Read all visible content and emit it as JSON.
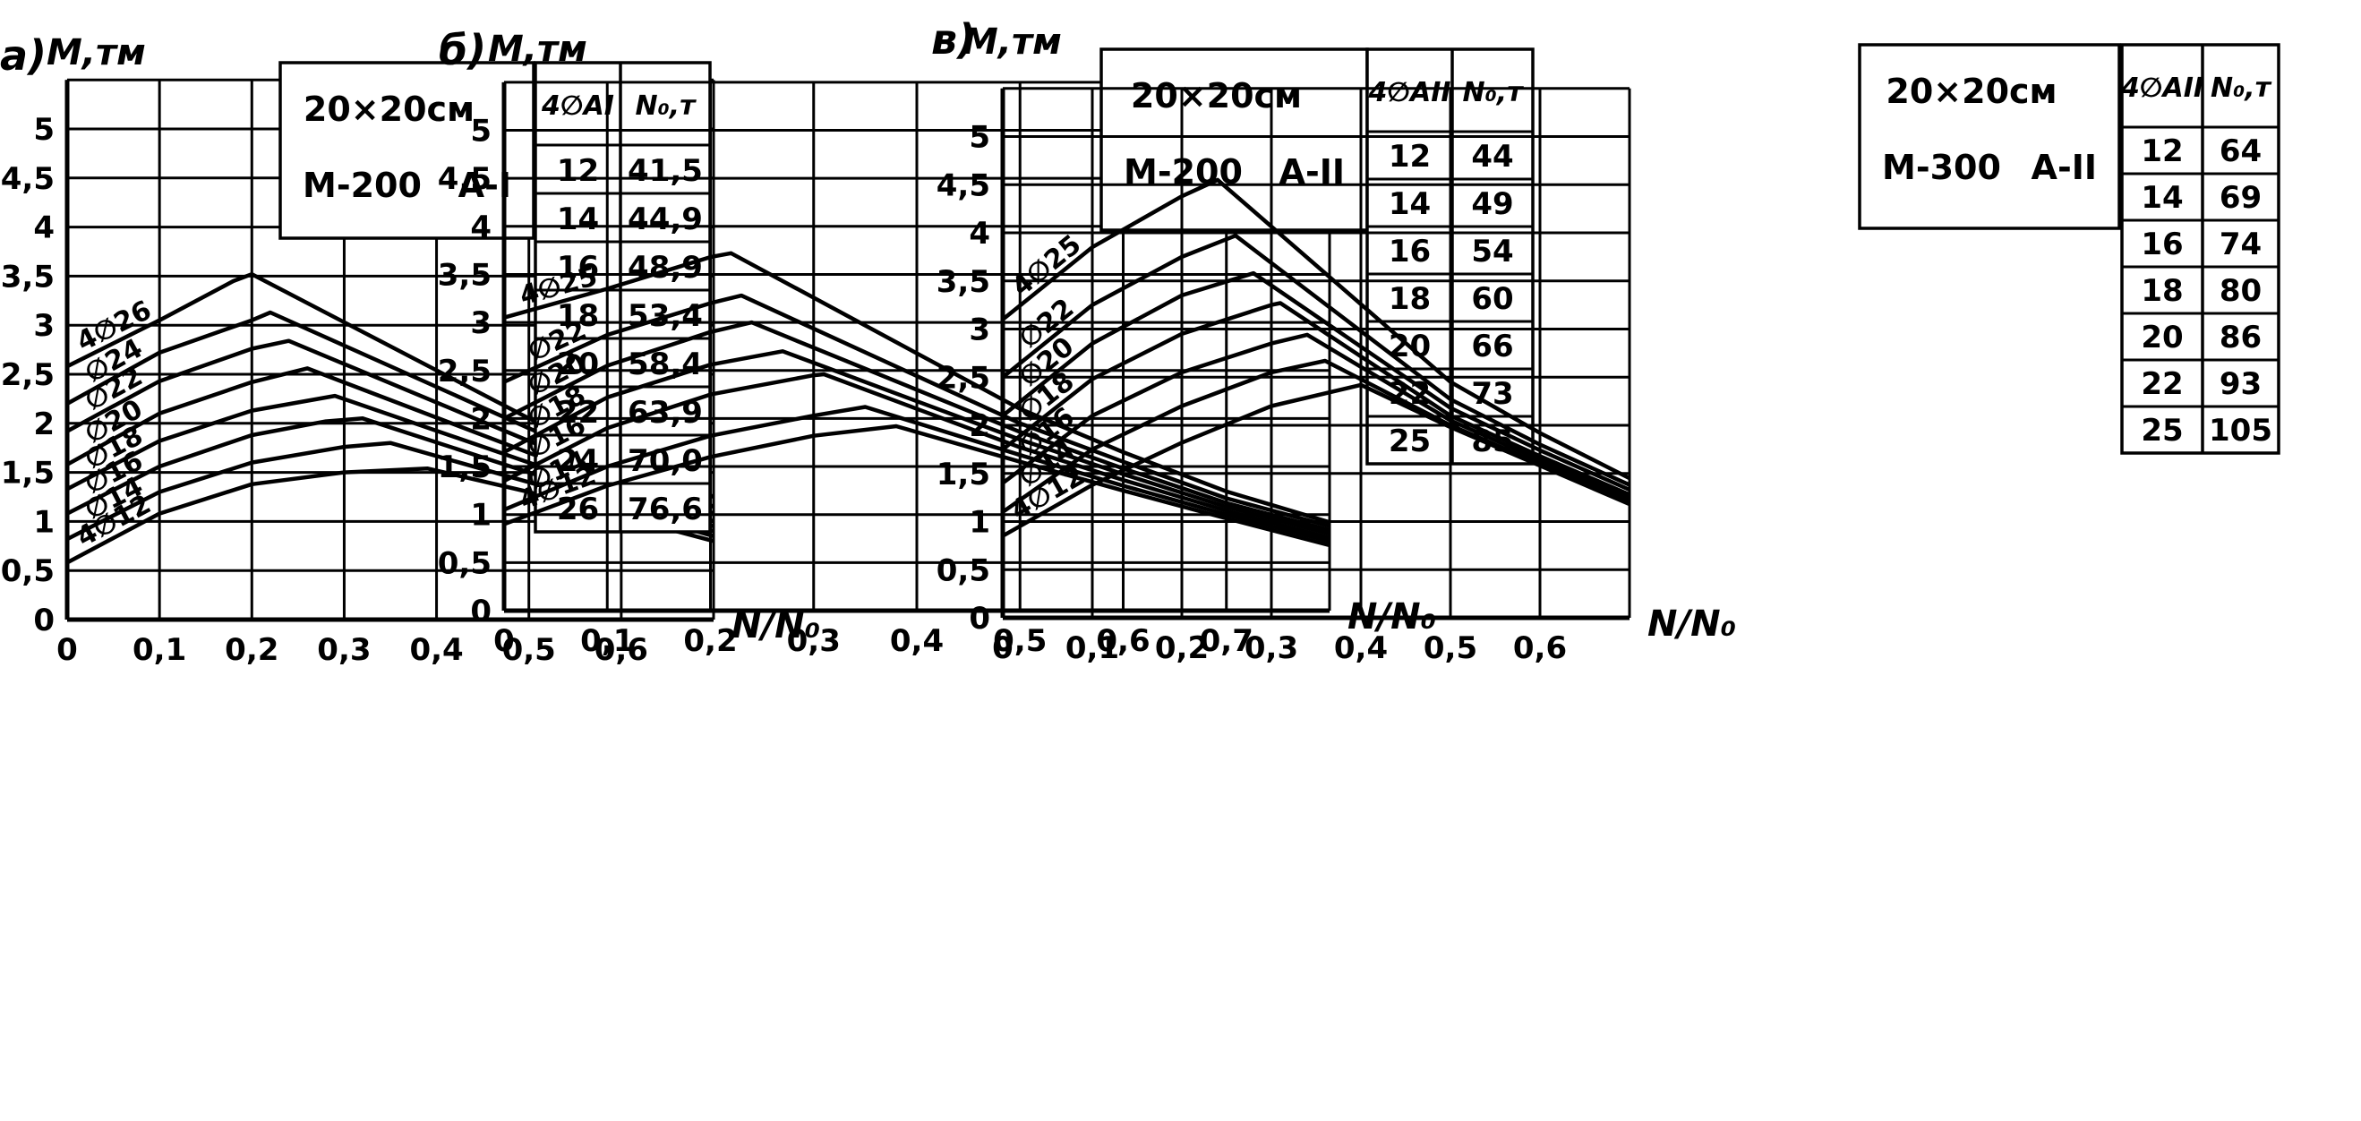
{
  "chart_data": [
    {
      "type": "line",
      "panel_label": "а)",
      "ylabel": "M,тм",
      "xlabel": "N/N₀",
      "x_ticks": [
        "0",
        "0,1",
        "0,2",
        "0,3",
        "0,4",
        "0,5",
        "0,6"
      ],
      "y_ticks": [
        "0",
        "0,5",
        "1",
        "1,5",
        "2",
        "2,5",
        "3",
        "3,5",
        "4",
        "4,5",
        "5"
      ],
      "xlim": [
        0,
        0.7
      ],
      "ylim": [
        0,
        5.5
      ],
      "info_box": {
        "section": "20×20см",
        "grade": "М-200",
        "steel": "А-I"
      },
      "table": {
        "headers": [
          "4∅AI",
          "N₀,т"
        ],
        "rows": [
          [
            "12",
            "41,5"
          ],
          [
            "14",
            "44,9"
          ],
          [
            "16",
            "48,9"
          ],
          [
            "18",
            "53,4"
          ],
          [
            "20",
            "58,4"
          ],
          [
            "22",
            "63,9"
          ],
          [
            "24",
            "70,0"
          ],
          [
            "26",
            "76,6"
          ]
        ]
      },
      "series": [
        {
          "name": "4∅12",
          "points": [
            [
              0,
              0.58
            ],
            [
              0.1,
              1.08
            ],
            [
              0.2,
              1.38
            ],
            [
              0.3,
              1.5
            ],
            [
              0.39,
              1.54
            ],
            [
              0.5,
              1.3
            ],
            [
              0.6,
              1.05
            ],
            [
              0.7,
              0.8
            ]
          ]
        },
        {
          "name": "∅14",
          "points": [
            [
              0,
              0.82
            ],
            [
              0.1,
              1.3
            ],
            [
              0.2,
              1.6
            ],
            [
              0.3,
              1.76
            ],
            [
              0.35,
              1.8
            ],
            [
              0.5,
              1.4
            ],
            [
              0.6,
              1.12
            ],
            [
              0.7,
              0.85
            ]
          ]
        },
        {
          "name": "∅16",
          "points": [
            [
              0,
              1.08
            ],
            [
              0.1,
              1.56
            ],
            [
              0.2,
              1.88
            ],
            [
              0.28,
              2.02
            ],
            [
              0.32,
              2.05
            ],
            [
              0.5,
              1.5
            ],
            [
              0.6,
              1.2
            ],
            [
              0.7,
              0.9
            ]
          ]
        },
        {
          "name": "∅18",
          "points": [
            [
              0,
              1.33
            ],
            [
              0.1,
              1.82
            ],
            [
              0.2,
              2.13
            ],
            [
              0.29,
              2.28
            ],
            [
              0.5,
              1.6
            ],
            [
              0.6,
              1.28
            ],
            [
              0.7,
              0.95
            ]
          ]
        },
        {
          "name": "∅20",
          "points": [
            [
              0,
              1.58
            ],
            [
              0.1,
              2.1
            ],
            [
              0.2,
              2.42
            ],
            [
              0.26,
              2.56
            ],
            [
              0.5,
              1.7
            ],
            [
              0.6,
              1.36
            ],
            [
              0.7,
              1.0
            ]
          ]
        },
        {
          "name": "∅22",
          "points": [
            [
              0,
              1.92
            ],
            [
              0.1,
              2.43
            ],
            [
              0.2,
              2.76
            ],
            [
              0.24,
              2.84
            ],
            [
              0.5,
              1.82
            ],
            [
              0.6,
              1.46
            ],
            [
              0.7,
              1.08
            ]
          ]
        },
        {
          "name": "∅24",
          "points": [
            [
              0,
              2.2
            ],
            [
              0.1,
              2.72
            ],
            [
              0.2,
              3.05
            ],
            [
              0.22,
              3.13
            ],
            [
              0.5,
              1.95
            ],
            [
              0.6,
              1.55
            ],
            [
              0.7,
              1.15
            ]
          ]
        },
        {
          "name": "4∅26",
          "points": [
            [
              0,
              2.58
            ],
            [
              0.1,
              3.05
            ],
            [
              0.18,
              3.45
            ],
            [
              0.2,
              3.52
            ],
            [
              0.5,
              2.05
            ],
            [
              0.6,
              1.65
            ],
            [
              0.7,
              1.25
            ]
          ]
        }
      ]
    },
    {
      "type": "line",
      "panel_label": "б)",
      "ylabel": "M,тм",
      "xlabel": "N/N₀",
      "x_ticks": [
        "0",
        "0,1",
        "0,2",
        "0,3",
        "0,4",
        "0,5",
        "0,6",
        "0,7"
      ],
      "y_ticks": [
        "0",
        "0,5",
        "1",
        "1,5",
        "2",
        "2,5",
        "3",
        "3,5",
        "4",
        "4,5",
        "5"
      ],
      "xlim": [
        0,
        0.8
      ],
      "ylim": [
        0,
        5.5
      ],
      "info_box": {
        "section": "20×20см",
        "grade": "М-200",
        "steel": "А-II"
      },
      "table": {
        "headers": [
          "4∅AII",
          "N₀,т"
        ],
        "rows": [
          [
            "12",
            "44"
          ],
          [
            "14",
            "49"
          ],
          [
            "16",
            "54"
          ],
          [
            "18",
            "60"
          ],
          [
            "20",
            "66"
          ],
          [
            "22",
            "73"
          ],
          [
            "25",
            "85"
          ]
        ]
      },
      "series": [
        {
          "name": "4∅12",
          "points": [
            [
              0,
              0.9
            ],
            [
              0.1,
              1.3
            ],
            [
              0.2,
              1.6
            ],
            [
              0.3,
              1.82
            ],
            [
              0.38,
              1.92
            ],
            [
              0.5,
              1.55
            ],
            [
              0.6,
              1.25
            ],
            [
              0.7,
              0.96
            ],
            [
              0.8,
              0.68
            ]
          ]
        },
        {
          "name": "∅14",
          "points": [
            [
              0,
              1.05
            ],
            [
              0.1,
              1.5
            ],
            [
              0.2,
              1.82
            ],
            [
              0.3,
              2.03
            ],
            [
              0.35,
              2.12
            ],
            [
              0.5,
              1.62
            ],
            [
              0.6,
              1.3
            ],
            [
              0.7,
              1.0
            ],
            [
              0.8,
              0.72
            ]
          ]
        },
        {
          "name": "∅16",
          "points": [
            [
              0,
              1.35
            ],
            [
              0.1,
              1.9
            ],
            [
              0.2,
              2.25
            ],
            [
              0.3,
              2.45
            ],
            [
              0.31,
              2.46
            ],
            [
              0.5,
              1.7
            ],
            [
              0.6,
              1.36
            ],
            [
              0.7,
              1.04
            ],
            [
              0.8,
              0.76
            ]
          ]
        },
        {
          "name": "∅18",
          "points": [
            [
              0,
              1.65
            ],
            [
              0.1,
              2.22
            ],
            [
              0.2,
              2.56
            ],
            [
              0.27,
              2.7
            ],
            [
              0.5,
              1.78
            ],
            [
              0.6,
              1.42
            ],
            [
              0.7,
              1.08
            ],
            [
              0.8,
              0.8
            ]
          ]
        },
        {
          "name": "∅20",
          "points": [
            [
              0,
              2.0
            ],
            [
              0.1,
              2.55
            ],
            [
              0.2,
              2.9
            ],
            [
              0.24,
              3.0
            ],
            [
              0.5,
              1.86
            ],
            [
              0.6,
              1.48
            ],
            [
              0.7,
              1.12
            ],
            [
              0.8,
              0.84
            ]
          ]
        },
        {
          "name": "∅22",
          "points": [
            [
              0,
              2.38
            ],
            [
              0.1,
              2.87
            ],
            [
              0.2,
              3.2
            ],
            [
              0.23,
              3.28
            ],
            [
              0.5,
              1.95
            ],
            [
              0.6,
              1.55
            ],
            [
              0.7,
              1.17
            ],
            [
              0.8,
              0.88
            ]
          ]
        },
        {
          "name": "4∅25",
          "points": [
            [
              0,
              3.05
            ],
            [
              0.1,
              3.35
            ],
            [
              0.2,
              3.68
            ],
            [
              0.22,
              3.72
            ],
            [
              0.5,
              2.1
            ],
            [
              0.6,
              1.65
            ],
            [
              0.7,
              1.24
            ],
            [
              0.8,
              0.92
            ]
          ]
        }
      ]
    },
    {
      "type": "line",
      "panel_label": "в)",
      "ylabel": "M,тм",
      "xlabel": "N/N₀",
      "x_ticks": [
        "0",
        "0,1",
        "0,2",
        "0,3",
        "0,4",
        "0,5",
        "0,6"
      ],
      "y_ticks": [
        "0",
        "0,5",
        "1",
        "1,5",
        "2",
        "2,5",
        "3",
        "3,5",
        "4",
        "4,5",
        "5"
      ],
      "xlim": [
        0,
        0.7
      ],
      "ylim": [
        0,
        5.5
      ],
      "info_box": {
        "section": "20×20см",
        "grade": "М-300",
        "steel": "А-II"
      },
      "table": {
        "headers": [
          "4∅AII",
          "N₀,т"
        ],
        "rows": [
          [
            "12",
            "64"
          ],
          [
            "14",
            "69"
          ],
          [
            "16",
            "74"
          ],
          [
            "18",
            "80"
          ],
          [
            "20",
            "86"
          ],
          [
            "22",
            "93"
          ],
          [
            "25",
            "105"
          ]
        ]
      },
      "series": [
        {
          "name": "4∅12",
          "points": [
            [
              0,
              0.85
            ],
            [
              0.1,
              1.38
            ],
            [
              0.2,
              1.82
            ],
            [
              0.3,
              2.2
            ],
            [
              0.4,
              2.42
            ],
            [
              0.5,
              1.98
            ],
            [
              0.6,
              1.58
            ],
            [
              0.7,
              1.18
            ]
          ]
        },
        {
          "name": "∅14",
          "points": [
            [
              0,
              1.1
            ],
            [
              0.1,
              1.75
            ],
            [
              0.2,
              2.2
            ],
            [
              0.3,
              2.55
            ],
            [
              0.36,
              2.67
            ],
            [
              0.5,
              2.0
            ],
            [
              0.6,
              1.6
            ],
            [
              0.7,
              1.2
            ]
          ]
        },
        {
          "name": "∅16",
          "points": [
            [
              0,
              1.4
            ],
            [
              0.1,
              2.1
            ],
            [
              0.2,
              2.55
            ],
            [
              0.3,
              2.85
            ],
            [
              0.34,
              2.94
            ],
            [
              0.5,
              2.05
            ],
            [
              0.6,
              1.64
            ],
            [
              0.7,
              1.24
            ]
          ]
        },
        {
          "name": "∅18",
          "points": [
            [
              0,
              1.75
            ],
            [
              0.1,
              2.48
            ],
            [
              0.2,
              2.95
            ],
            [
              0.3,
              3.25
            ],
            [
              0.31,
              3.27
            ],
            [
              0.5,
              2.1
            ],
            [
              0.6,
              1.68
            ],
            [
              0.7,
              1.28
            ]
          ]
        },
        {
          "name": "∅20",
          "points": [
            [
              0,
              2.1
            ],
            [
              0.1,
              2.85
            ],
            [
              0.2,
              3.35
            ],
            [
              0.28,
              3.58
            ],
            [
              0.5,
              2.18
            ],
            [
              0.6,
              1.74
            ],
            [
              0.7,
              1.33
            ]
          ]
        },
        {
          "name": "∅22",
          "points": [
            [
              0,
              2.5
            ],
            [
              0.1,
              3.25
            ],
            [
              0.2,
              3.75
            ],
            [
              0.26,
              3.97
            ],
            [
              0.5,
              2.27
            ],
            [
              0.6,
              1.8
            ],
            [
              0.7,
              1.38
            ]
          ]
        },
        {
          "name": "4∅25",
          "points": [
            [
              0,
              3.1
            ],
            [
              0.1,
              3.85
            ],
            [
              0.2,
              4.38
            ],
            [
              0.24,
              4.55
            ],
            [
              0.5,
              2.45
            ],
            [
              0.6,
              1.92
            ],
            [
              0.7,
              1.45
            ]
          ]
        }
      ]
    }
  ]
}
